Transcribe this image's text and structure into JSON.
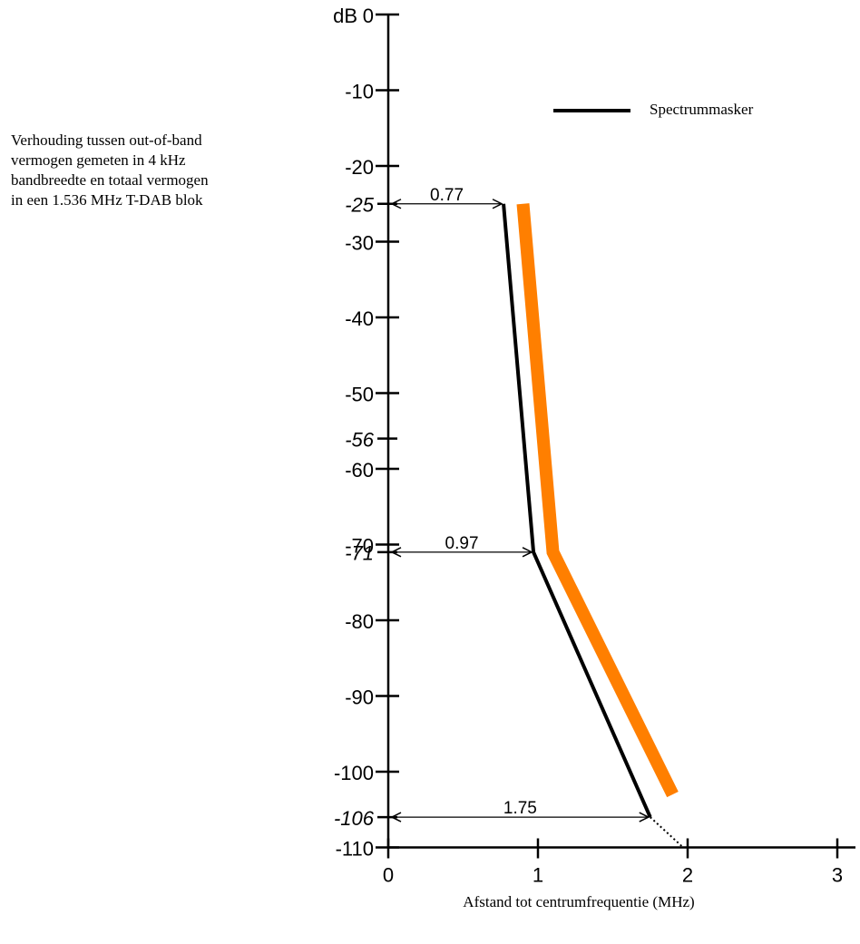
{
  "chart_data": {
    "type": "line",
    "ylabel": "dB",
    "xlabel": "Afstand tot centrumfrequentie (MHz)",
    "side_note_lines": [
      "Verhouding tussen out-of-band",
      "vermogen gemeten in 4 kHz",
      "bandbreedte en totaal vermogen",
      "in een 1.536 MHz T-DAB blok"
    ],
    "legend": {
      "label": "Spectrummasker",
      "placement": "top-right"
    },
    "xlim": [
      0,
      3
    ],
    "ylim": [
      -110,
      0
    ],
    "x_ticks": [
      0,
      1,
      2,
      3
    ],
    "x_tick_labels": [
      "0",
      "1",
      "2",
      "3"
    ],
    "y_ticks": [
      0,
      -10,
      -20,
      -30,
      -40,
      -50,
      -60,
      -70,
      -80,
      -90,
      -100,
      -110
    ],
    "y_tick_labels": [
      "0",
      "-10",
      "-20",
      "-30",
      "-40",
      "-50",
      "-60",
      "-70",
      "-80",
      "-90",
      "-100",
      "-110"
    ],
    "y_special_ticks": [
      -25,
      -56,
      -71,
      -106
    ],
    "y_special_labels": [
      "-25",
      "-56",
      "-71",
      "-106"
    ],
    "series": [
      {
        "name": "Spectrummasker",
        "color": "#000000",
        "points": [
          [
            0.77,
            -25
          ],
          [
            0.97,
            -71
          ],
          [
            1.75,
            -106
          ]
        ],
        "extension_dotted": [
          [
            1.75,
            -106
          ],
          [
            1.97,
            -110
          ]
        ]
      },
      {
        "color": "#ff7f00",
        "points": [
          [
            0.9,
            -25
          ],
          [
            1.1,
            -71
          ],
          [
            1.9,
            -103
          ]
        ]
      }
    ],
    "annotations": [
      {
        "label": "0.77",
        "x_from": 0,
        "x_to": 0.77,
        "y": -25
      },
      {
        "label": "0.97",
        "x_from": 0,
        "x_to": 0.97,
        "y": -71
      },
      {
        "label": "1.75",
        "x_from": 0,
        "x_to": 1.75,
        "y": -106
      }
    ],
    "grid": false
  }
}
